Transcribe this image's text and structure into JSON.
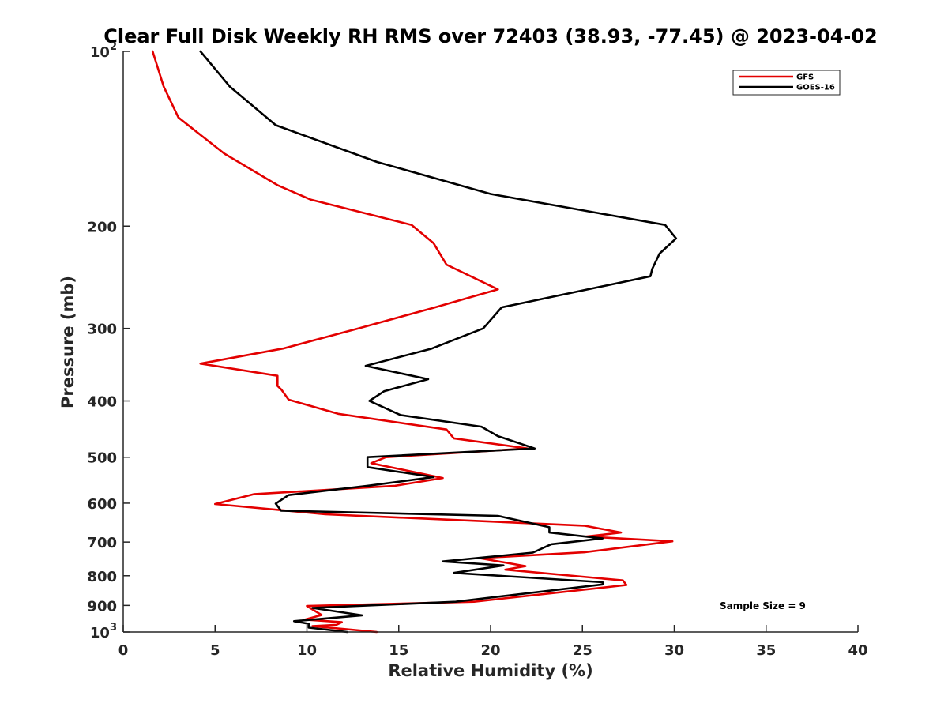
{
  "chart_data": {
    "type": "line",
    "title": "Clear Full Disk Weekly RH RMS over 72403 (38.93, -77.45) @ 2023-04-02",
    "xlabel": "Relative Humidity (%)",
    "ylabel": "Pressure (mb)",
    "xlim": [
      0,
      40
    ],
    "ylim": [
      100,
      1000
    ],
    "y_scale": "log",
    "y_reversed": true,
    "grid": false,
    "legend_position": "top-right",
    "x_ticks": [
      0,
      5,
      10,
      15,
      20,
      25,
      30,
      35,
      40
    ],
    "x_tick_labels": [
      "0",
      "5",
      "10",
      "15",
      "20",
      "25",
      "30",
      "35",
      "40"
    ],
    "y_ticks": [
      100,
      200,
      300,
      400,
      500,
      600,
      700,
      800,
      900,
      1000
    ],
    "y_tick_labels": [
      {
        "base": "10",
        "exp": "2"
      },
      {
        "base": "200",
        "exp": ""
      },
      {
        "base": "300",
        "exp": ""
      },
      {
        "base": "400",
        "exp": ""
      },
      {
        "base": "500",
        "exp": ""
      },
      {
        "base": "600",
        "exp": ""
      },
      {
        "base": "700",
        "exp": ""
      },
      {
        "base": "800",
        "exp": ""
      },
      {
        "base": "900",
        "exp": ""
      },
      {
        "base": "10",
        "exp": "3"
      }
    ],
    "annotation": "Sample Size = 9",
    "series": [
      {
        "name": "GFS",
        "color": "#e30000",
        "points": [
          [
            1.6,
            100
          ],
          [
            2.2,
            115
          ],
          [
            3.0,
            130
          ],
          [
            5.5,
            150
          ],
          [
            8.4,
            170
          ],
          [
            10.2,
            180
          ],
          [
            15.7,
            199
          ],
          [
            16.9,
            214
          ],
          [
            17.6,
            233
          ],
          [
            20.4,
            257
          ],
          [
            16.8,
            277
          ],
          [
            12.8,
            300
          ],
          [
            8.7,
            325
          ],
          [
            4.2,
            345
          ],
          [
            8.4,
            362
          ],
          [
            8.4,
            377
          ],
          [
            8.6,
            382
          ],
          [
            9.0,
            398
          ],
          [
            11.7,
            421
          ],
          [
            17.6,
            448
          ],
          [
            18.0,
            464
          ],
          [
            22.0,
            483
          ],
          [
            14.3,
            500
          ],
          [
            13.5,
            512
          ],
          [
            17.4,
            543
          ],
          [
            14.8,
            560
          ],
          [
            7.1,
            579
          ],
          [
            5.0,
            602
          ],
          [
            11.0,
            627
          ],
          [
            25.1,
            656
          ],
          [
            27.1,
            674
          ],
          [
            25.2,
            685
          ],
          [
            29.9,
            698
          ],
          [
            25.1,
            729
          ],
          [
            19.4,
            746
          ],
          [
            21.9,
            770
          ],
          [
            20.8,
            781
          ],
          [
            27.2,
            815
          ],
          [
            27.4,
            830
          ],
          [
            19.1,
            887
          ],
          [
            10.0,
            902
          ],
          [
            10.8,
            935
          ],
          [
            9.9,
            952
          ],
          [
            11.9,
            962
          ],
          [
            11.6,
            972
          ],
          [
            10.3,
            977
          ],
          [
            13.8,
            1000
          ]
        ]
      },
      {
        "name": "GOES-16",
        "color": "#000000",
        "points": [
          [
            4.2,
            100
          ],
          [
            5.8,
            115
          ],
          [
            8.3,
            134
          ],
          [
            13.8,
            155
          ],
          [
            20.0,
            176
          ],
          [
            25.9,
            190
          ],
          [
            29.5,
            199
          ],
          [
            30.1,
            210
          ],
          [
            29.2,
            223
          ],
          [
            28.8,
            237
          ],
          [
            28.7,
            244
          ],
          [
            20.6,
            276
          ],
          [
            19.6,
            300
          ],
          [
            16.8,
            325
          ],
          [
            13.2,
            348
          ],
          [
            16.6,
            367
          ],
          [
            14.2,
            385
          ],
          [
            13.4,
            400
          ],
          [
            15.1,
            423
          ],
          [
            19.5,
            443
          ],
          [
            20.4,
            460
          ],
          [
            22.4,
            483
          ],
          [
            13.3,
            500
          ],
          [
            13.3,
            520
          ],
          [
            16.9,
            541
          ],
          [
            13.3,
            560
          ],
          [
            9.0,
            581
          ],
          [
            8.3,
            601
          ],
          [
            8.6,
            618
          ],
          [
            20.4,
            631
          ],
          [
            23.2,
            660
          ],
          [
            23.2,
            674
          ],
          [
            26.1,
            690
          ],
          [
            23.3,
            706
          ],
          [
            22.3,
            730
          ],
          [
            17.4,
            756
          ],
          [
            20.7,
            768
          ],
          [
            18.0,
            791
          ],
          [
            26.1,
            821
          ],
          [
            26.1,
            828
          ],
          [
            18.1,
            887
          ],
          [
            10.3,
            909
          ],
          [
            13.0,
            936
          ],
          [
            9.3,
            958
          ],
          [
            10.1,
            968
          ],
          [
            10.1,
            983
          ],
          [
            12.2,
            1000
          ]
        ]
      }
    ]
  }
}
